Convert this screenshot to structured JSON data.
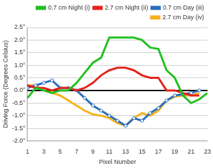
{
  "chart_data": {
    "type": "line",
    "x_label": "Pixel Number",
    "y_label": "Driving Force (Degrees Celsius)",
    "x": [
      1,
      2,
      3,
      4,
      5,
      6,
      7,
      8,
      9,
      10,
      11,
      12,
      13,
      14,
      15,
      16,
      17,
      18,
      19,
      20,
      21,
      22,
      23
    ],
    "series": [
      {
        "name": "0.7 cm Night (i)",
        "color": "#21c021",
        "marker": "none",
        "line_style": "solid",
        "values": [
          -0.3,
          0.1,
          0.0,
          -0.1,
          0.0,
          0.0,
          0.3,
          0.7,
          1.1,
          1.3,
          2.1,
          2.1,
          2.1,
          2.1,
          2.0,
          1.7,
          1.65,
          0.8,
          0.5,
          -0.2,
          -0.5,
          -0.35,
          -0.1
        ]
      },
      {
        "name": "2.7 cm Night (ii)",
        "color": "#e3231b",
        "marker": "none",
        "line_style": "solid",
        "values": [
          0.2,
          0.1,
          0.1,
          0.0,
          0.1,
          0.1,
          0.0,
          0.1,
          0.3,
          0.6,
          0.8,
          0.9,
          0.9,
          0.8,
          0.6,
          0.5,
          0.5,
          0.0,
          0.0,
          -0.1,
          -0.2,
          -0.2,
          null
        ]
      },
      {
        "name": "0.7 cm Day (iii)",
        "color": "#2a6ebb",
        "marker": "circle",
        "line_style": "solid",
        "values": [
          0.1,
          0.2,
          0.3,
          0.4,
          0.1,
          0.1,
          0.0,
          -0.3,
          -0.6,
          -0.8,
          -1.0,
          -1.2,
          -1.4,
          -1.1,
          -1.2,
          -0.9,
          -0.7,
          -0.4,
          -0.2,
          -0.15,
          -0.1,
          0.0,
          null
        ]
      },
      {
        "name": "2.7 cm Day (iv)",
        "color": "#f5b21c",
        "marker": "none",
        "line_style": "solid",
        "values": [
          0.2,
          0.2,
          0.0,
          -0.1,
          -0.2,
          -0.4,
          -0.6,
          -0.8,
          -0.95,
          -1.0,
          -1.1,
          -1.3,
          -1.4,
          -1.1,
          -0.9,
          -1.0,
          -0.8,
          -0.4,
          -0.25,
          -0.2,
          -0.2,
          -0.1,
          null
        ]
      }
    ],
    "xlim": [
      1,
      23
    ],
    "xticks": [
      1,
      3,
      5,
      7,
      9,
      11,
      13,
      15,
      17,
      19,
      21,
      23
    ],
    "ylim": [
      -2.0,
      2.5
    ],
    "yticks": [
      {
        "value": -2.0,
        "label": "-2.0°"
      },
      {
        "value": -1.5,
        "label": "-1.5°"
      },
      {
        "value": -1.0,
        "label": "-1.0°"
      },
      {
        "value": -0.5,
        "label": "-0.5°"
      },
      {
        "value": 0.0,
        "label": "0.0°"
      },
      {
        "value": 0.5,
        "label": "0.5°"
      },
      {
        "value": 1.0,
        "label": "1.0°"
      },
      {
        "value": 1.5,
        "label": "1.5°"
      },
      {
        "value": 2.0,
        "label": "2.0°"
      },
      {
        "value": 2.5,
        "label": "2.5°"
      }
    ],
    "grid": true,
    "legend": "top"
  }
}
